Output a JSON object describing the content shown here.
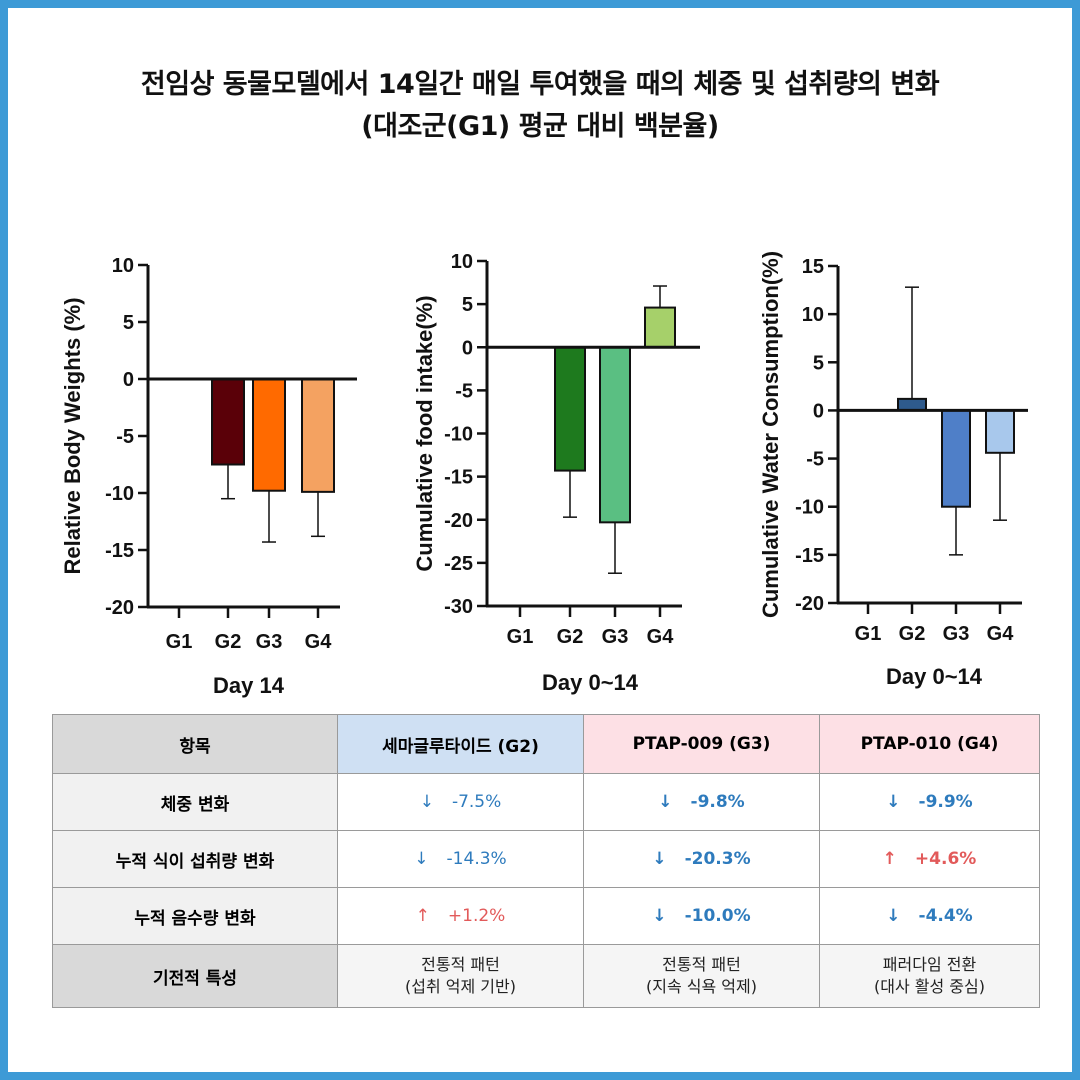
{
  "title": {
    "line1": "전임상 동물모델에서 14일간 매일 투여했을 때의 체중 및 섭취량의 변화",
    "line2": "(대조군(G1) 평균 대비 백분율)"
  },
  "colors": {
    "frame": "#3d9ad6",
    "decrease": "#2e7bbd",
    "increase": "#e25a5a"
  },
  "chart_data": [
    {
      "type": "bar",
      "ylabel": "Relative Body Weights (%)",
      "xlabel": "Day 14",
      "categories": [
        "G1",
        "G2",
        "G3",
        "G4"
      ],
      "values": [
        0,
        -7.5,
        -9.8,
        -9.9
      ],
      "error": [
        0,
        3.0,
        4.5,
        3.9
      ],
      "colors": [
        "#ffffff",
        "#5a0008",
        "#ff6a00",
        "#f4a261"
      ],
      "ylim": [
        -20,
        10
      ],
      "yticks": [
        10,
        5,
        0,
        -5,
        -10,
        -15,
        -20
      ],
      "grid": false
    },
    {
      "type": "bar",
      "ylabel": "Cumulative food intake(%)",
      "xlabel": "Day 0~14",
      "categories": [
        "G1",
        "G2",
        "G3",
        "G4"
      ],
      "values": [
        0,
        -14.3,
        -20.3,
        4.6
      ],
      "error": [
        0,
        5.4,
        5.9,
        2.5
      ],
      "colors": [
        "#ffffff",
        "#1e7a1e",
        "#5abf82",
        "#a6d06a"
      ],
      "ylim": [
        -30,
        10
      ],
      "yticks": [
        10,
        5,
        0,
        -5,
        -10,
        -15,
        -20,
        -25,
        -30
      ],
      "grid": false
    },
    {
      "type": "bar",
      "ylabel": "Cumulative Water Consumption(%)",
      "xlabel": "Day 0~14",
      "categories": [
        "G1",
        "G2",
        "G3",
        "G4"
      ],
      "values": [
        0,
        1.2,
        -10.0,
        -4.4
      ],
      "error": [
        0,
        11.6,
        5.0,
        7.0
      ],
      "colors": [
        "#ffffff",
        "#2e5a8c",
        "#4f7fc8",
        "#a8c8ec"
      ],
      "ylim": [
        -20,
        15
      ],
      "yticks": [
        15,
        10,
        5,
        0,
        -5,
        -10,
        -15,
        -20
      ],
      "grid": false
    }
  ],
  "table": {
    "headers": [
      "항목",
      "세마글루타이드 (G2)",
      "PTAP-009 (G3)",
      "PTAP-010 (G4)"
    ],
    "rows": [
      {
        "label": "체중 변화",
        "cells": [
          {
            "arrow": "↓",
            "value": "-7.5%"
          },
          {
            "arrow": "↓",
            "value": "-9.8%"
          },
          {
            "arrow": "↓",
            "value": "-9.9%"
          }
        ]
      },
      {
        "label": "누적 식이 섭취량 변화",
        "cells": [
          {
            "arrow": "↓",
            "value": "-14.3%"
          },
          {
            "arrow": "↓",
            "value": "-20.3%"
          },
          {
            "arrow": "↑",
            "value": "+4.6%"
          }
        ]
      },
      {
        "label": "누적 음수량 변화",
        "cells": [
          {
            "arrow": "↑",
            "value": "+1.2%"
          },
          {
            "arrow": "↓",
            "value": "-10.0%"
          },
          {
            "arrow": "↓",
            "value": "-4.4%"
          }
        ]
      }
    ],
    "mechanism": {
      "label": "기전적 특성",
      "cells": [
        {
          "line1": "전통적 패턴",
          "line2": "(섭취 억제 기반)"
        },
        {
          "line1": "전통적 패턴",
          "line2": "(지속 식욕 억제)"
        },
        {
          "line1": "패러다임 전환",
          "line2": "(대사 활성 중심)"
        }
      ]
    }
  }
}
